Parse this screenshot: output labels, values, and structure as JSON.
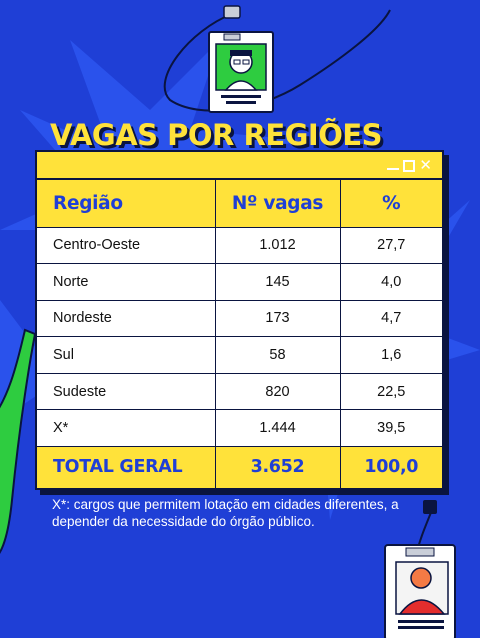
{
  "title": "VAGAS POR REGIÕES",
  "table": {
    "headers": [
      "Região",
      "Nº vagas",
      "%"
    ],
    "rows": [
      [
        "Centro-Oeste",
        "1.012",
        "27,7"
      ],
      [
        "Norte",
        "145",
        "4,0"
      ],
      [
        "Nordeste",
        "173",
        "4,7"
      ],
      [
        "Sul",
        "58",
        "1,6"
      ],
      [
        "Sudeste",
        "820",
        "22,5"
      ],
      [
        "X*",
        "1.444",
        "39,5"
      ]
    ],
    "total": [
      "TOTAL GERAL",
      "3.652",
      "100,0"
    ]
  },
  "footnote": "X*: cargos que permitem lotação em cidades diferentes, a depender da necessidade do órgão público.",
  "colors": {
    "background": "#1f3fd6",
    "accent_yellow": "#ffe23a",
    "dark_navy": "#0a1440",
    "badge_green": "#2ecc40",
    "avatar_orange": "#f47a45",
    "avatar_red": "#e32d2d"
  }
}
